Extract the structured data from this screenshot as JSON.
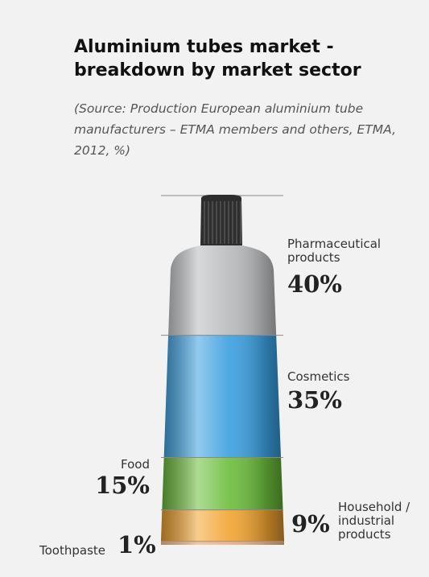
{
  "chart_data": {
    "type": "tube",
    "title": "Aluminium tubes market - breakdown by market sector",
    "subtitle": "(Source: Production European aluminium tube manufacturers – ETMA members and others, ETMA, 2012, %)",
    "series": [
      {
        "name": "Pharmaceutical products",
        "color": "#b8babc",
        "values": [
          40
        ],
        "value_labels": [
          "40%"
        ]
      },
      {
        "name": "Cosmetics",
        "color": "#3a9fe0",
        "values": [
          35
        ],
        "value_labels": [
          "35%"
        ]
      },
      {
        "name": "Food",
        "color": "#6cbd3c",
        "values": [
          15
        ],
        "value_labels": [
          "15%"
        ]
      },
      {
        "name": "Household / industrial products",
        "color": "#f2a431",
        "values": [
          9
        ],
        "value_labels": [
          "9%"
        ]
      },
      {
        "name": "Toothpaste",
        "color": "#f6b98a",
        "values": [
          1
        ],
        "value_labels": [
          "1%"
        ]
      }
    ]
  }
}
